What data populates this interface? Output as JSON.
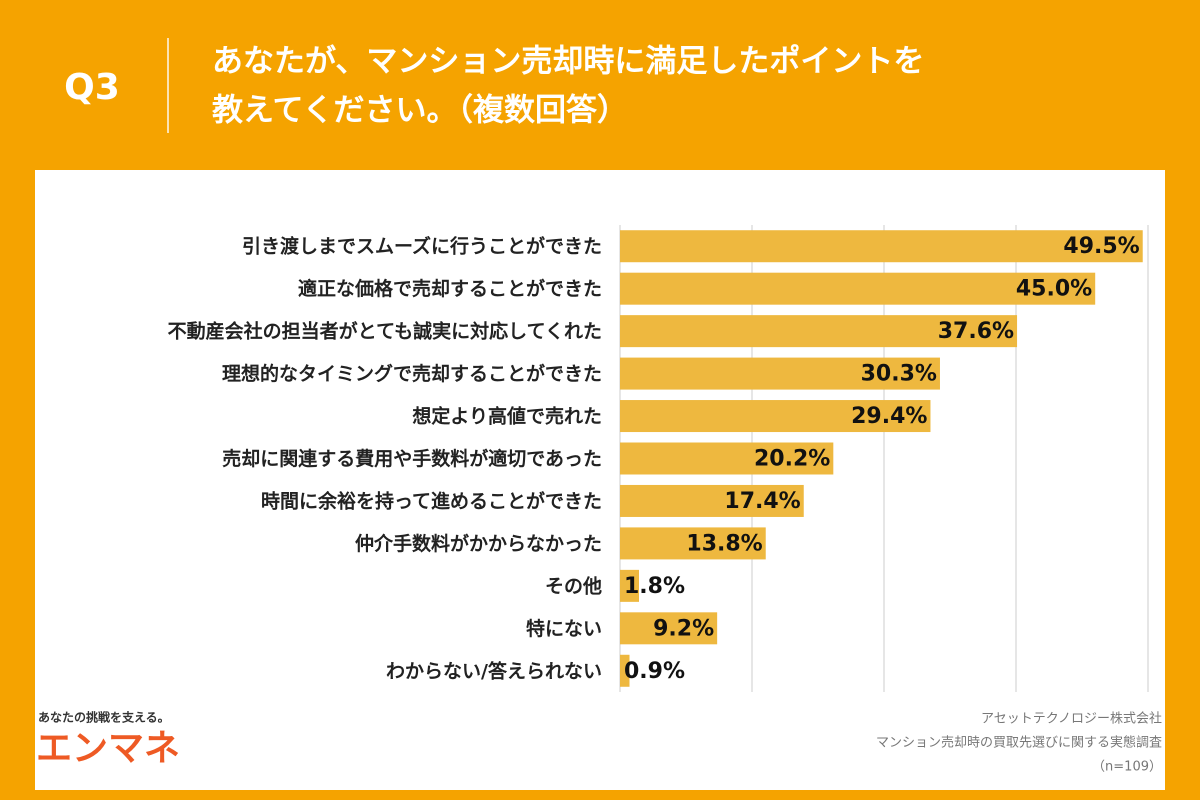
{
  "header": {
    "question": "Q3",
    "title_lines": [
      "あなたが、マンション売却時に満足したポイントを",
      "教えてください。（複数回答）"
    ]
  },
  "chart_data": {
    "type": "hbar",
    "categories": [
      "引き渡しまでスムーズに行うことができた",
      "適正な価格で売却することができた",
      "不動産会社の担当者がとても誠実に対応してくれた",
      "理想的なタイミングで売却することができた",
      "想定より高値で売れた",
      "売却に関連する費用や手数料が適切であった",
      "時間に余裕を持って進めることができた",
      "仲介手数料がかからなかった",
      "その他",
      "特にない",
      "わからない/答えられない"
    ],
    "values": [
      49.5,
      45.0,
      37.6,
      30.3,
      29.4,
      20.2,
      17.4,
      13.8,
      1.8,
      9.2,
      0.9
    ],
    "value_labels": [
      "49.5%",
      "45.0%",
      "37.6%",
      "30.3%",
      "29.4%",
      "20.2%",
      "17.4%",
      "13.8%",
      "1.8%",
      "9.2%",
      "0.9%"
    ],
    "color": "#eeb83f",
    "xlim": [
      0,
      50
    ],
    "xticks": [
      0,
      12.5,
      25,
      37.5,
      50
    ],
    "grid": true
  },
  "footer": {
    "tagline": "あなたの挑戦を支える。",
    "logo": "エンマネ",
    "source_lines": [
      "アセットテクノロジー株式会社",
      "マンション売却時の買取先選びに関する実態調査",
      "（n=109）"
    ]
  }
}
